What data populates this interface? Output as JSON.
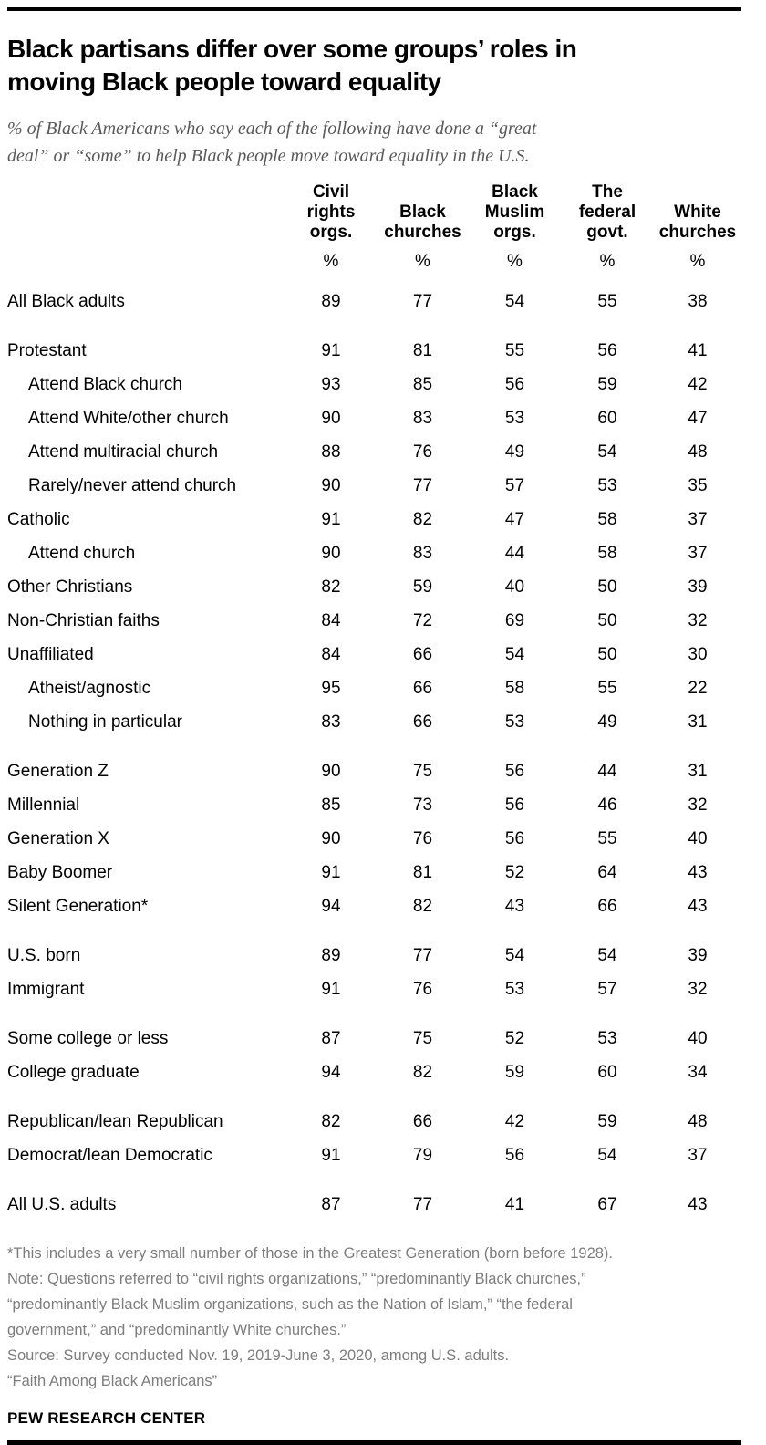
{
  "header": {
    "title_lines": [
      "Black partisans differ over some groups’ roles in",
      "moving Black people toward equality"
    ],
    "subtitle_lines": [
      "% of Black Americans who say each of the following have done a “great",
      "deal” or “some” to help Black people move toward equality in the U.S."
    ]
  },
  "chart_data": {
    "type": "table",
    "title": "Black partisans differ over some groups’ roles in moving Black people toward equality",
    "subtitle": "% of Black Americans who say each of the following have done a “great deal” or “some” to help Black people move toward equality in the U.S.",
    "columns": [
      "Civil rights orgs.",
      "Black churches",
      "Black Muslim orgs.",
      "The federal govt.",
      "White churches"
    ],
    "column_header_lines": [
      [
        "Civil",
        "rights",
        "orgs."
      ],
      [
        "Black",
        "churches"
      ],
      [
        "Black",
        "Muslim",
        "orgs."
      ],
      [
        "The",
        "federal",
        "govt."
      ],
      [
        "White",
        "churches"
      ]
    ],
    "unit_row": [
      "%",
      "%",
      "%",
      "%",
      "%"
    ],
    "rows": [
      {
        "label": "All Black adults",
        "indent": false,
        "gap": false,
        "values": [
          89,
          77,
          54,
          55,
          38
        ]
      },
      {
        "label": "Protestant",
        "indent": false,
        "gap": true,
        "values": [
          91,
          81,
          55,
          56,
          41
        ]
      },
      {
        "label": "Attend Black church",
        "indent": true,
        "gap": false,
        "values": [
          93,
          85,
          56,
          59,
          42
        ]
      },
      {
        "label": "Attend White/other church",
        "indent": true,
        "gap": false,
        "values": [
          90,
          83,
          53,
          60,
          47
        ]
      },
      {
        "label": "Attend multiracial church",
        "indent": true,
        "gap": false,
        "values": [
          88,
          76,
          49,
          54,
          48
        ]
      },
      {
        "label": "Rarely/never attend church",
        "indent": true,
        "gap": false,
        "values": [
          90,
          77,
          57,
          53,
          35
        ]
      },
      {
        "label": "Catholic",
        "indent": false,
        "gap": false,
        "values": [
          91,
          82,
          47,
          58,
          37
        ]
      },
      {
        "label": "Attend church",
        "indent": true,
        "gap": false,
        "values": [
          90,
          83,
          44,
          58,
          37
        ]
      },
      {
        "label": "Other Christians",
        "indent": false,
        "gap": false,
        "values": [
          82,
          59,
          40,
          50,
          39
        ]
      },
      {
        "label": "Non-Christian faiths",
        "indent": false,
        "gap": false,
        "values": [
          84,
          72,
          69,
          50,
          32
        ]
      },
      {
        "label": "Unaffiliated",
        "indent": false,
        "gap": false,
        "values": [
          84,
          66,
          54,
          50,
          30
        ]
      },
      {
        "label": "Atheist/agnostic",
        "indent": true,
        "gap": false,
        "values": [
          95,
          66,
          58,
          55,
          22
        ]
      },
      {
        "label": "Nothing in particular",
        "indent": true,
        "gap": false,
        "values": [
          83,
          66,
          53,
          49,
          31
        ]
      },
      {
        "label": "Generation Z",
        "indent": false,
        "gap": true,
        "values": [
          90,
          75,
          56,
          44,
          31
        ]
      },
      {
        "label": "Millennial",
        "indent": false,
        "gap": false,
        "values": [
          85,
          73,
          56,
          46,
          32
        ]
      },
      {
        "label": "Generation X",
        "indent": false,
        "gap": false,
        "values": [
          90,
          76,
          56,
          55,
          40
        ]
      },
      {
        "label": "Baby Boomer",
        "indent": false,
        "gap": false,
        "values": [
          91,
          81,
          52,
          64,
          43
        ]
      },
      {
        "label": "Silent Generation*",
        "indent": false,
        "gap": false,
        "values": [
          94,
          82,
          43,
          66,
          43
        ]
      },
      {
        "label": "U.S. born",
        "indent": false,
        "gap": true,
        "values": [
          89,
          77,
          54,
          54,
          39
        ]
      },
      {
        "label": "Immigrant",
        "indent": false,
        "gap": false,
        "values": [
          91,
          76,
          53,
          57,
          32
        ]
      },
      {
        "label": "Some college or less",
        "indent": false,
        "gap": true,
        "values": [
          87,
          75,
          52,
          53,
          40
        ]
      },
      {
        "label": "College graduate",
        "indent": false,
        "gap": false,
        "values": [
          94,
          82,
          59,
          60,
          34
        ]
      },
      {
        "label": "Republican/lean Republican",
        "indent": false,
        "gap": true,
        "values": [
          82,
          66,
          42,
          59,
          48
        ]
      },
      {
        "label": "Democrat/lean Democratic",
        "indent": false,
        "gap": false,
        "values": [
          91,
          79,
          56,
          54,
          37
        ]
      },
      {
        "label": "All U.S. adults",
        "indent": false,
        "gap": true,
        "values": [
          87,
          77,
          41,
          67,
          43
        ]
      }
    ]
  },
  "footer": {
    "note_lines": [
      "*This includes a very small number of those in the Greatest Generation (born before 1928).",
      "Note: Questions referred to “civil rights organizations,” “predominantly Black churches,”",
      "“predominantly Black Muslim organizations, such as the Nation of Islam,” “the federal",
      "government,” and “predominantly White churches.”",
      "Source: Survey conducted Nov. 19, 2019-June 3, 2020, among U.S. adults.",
      "“Faith Among Black Americans”"
    ],
    "brand": "PEW RESEARCH CENTER"
  },
  "colors": {
    "text": "#000000",
    "subtitle_gray": "#595959",
    "note_gray": "#7d7d7d",
    "rule_black": "#000000"
  }
}
